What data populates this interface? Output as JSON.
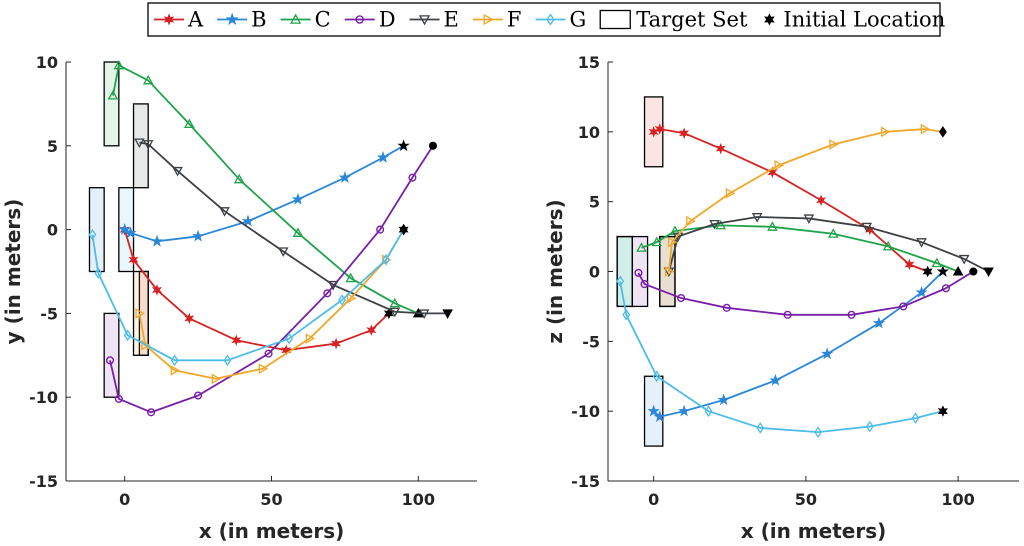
{
  "legend": {
    "placement": "top-center",
    "target_label": "Target Set",
    "initial_label": "Initial Location"
  },
  "chart_data": [
    {
      "type": "line",
      "xlabel": "x (in meters)",
      "ylabel": "y (in meters)",
      "xlim": [
        -20,
        120
      ],
      "ylim": [
        -15,
        10
      ],
      "xticks": [
        0,
        50,
        100
      ],
      "yticks": [
        -15,
        -10,
        -5,
        0,
        5,
        10
      ],
      "targets": [
        {
          "series": "A",
          "x": [
            5,
            8
          ],
          "y": [
            -7.5,
            -2.5
          ]
        },
        {
          "series": "B",
          "x": [
            -12,
            -7
          ],
          "y": [
            -2.5,
            2.5
          ]
        },
        {
          "series": "C",
          "x": [
            -7,
            -2
          ],
          "y": [
            5,
            10
          ]
        },
        {
          "series": "D",
          "x": [
            -7,
            -2
          ],
          "y": [
            -10,
            -5
          ]
        },
        {
          "series": "E",
          "x": [
            3,
            8
          ],
          "y": [
            2.5,
            7.5
          ]
        },
        {
          "series": "F",
          "x": [
            3,
            8
          ],
          "y": [
            -7.5,
            -2.5
          ]
        },
        {
          "series": "G",
          "x": [
            -2,
            3
          ],
          "y": [
            -2.5,
            2.5
          ]
        }
      ],
      "series": [
        {
          "name": "A",
          "color": "#d62222",
          "marker": "star6",
          "initial_marker": "hexagram",
          "x": [
            90,
            84,
            72,
            55,
            38,
            22,
            11,
            3,
            0
          ],
          "y": [
            -5,
            -6,
            -6.8,
            -7.2,
            -6.6,
            -5.3,
            -3.6,
            -1.8,
            0
          ]
        },
        {
          "name": "B",
          "color": "#2b87d8",
          "marker": "star5",
          "initial_marker": "star5",
          "x": [
            95,
            88,
            75,
            59,
            42,
            25,
            11,
            2,
            0
          ],
          "y": [
            5,
            4.3,
            3.1,
            1.8,
            0.5,
            -0.4,
            -0.7,
            -0.2,
            0
          ]
        },
        {
          "name": "C",
          "color": "#1fa34a",
          "marker": "triangle-up",
          "initial_marker": "triangle-up",
          "x": [
            100,
            92,
            77,
            59,
            39,
            22,
            8,
            -2,
            -4
          ],
          "y": [
            -5,
            -4.4,
            -2.9,
            -0.2,
            3,
            6.3,
            8.9,
            9.8,
            8
          ]
        },
        {
          "name": "D",
          "color": "#7a1fa8",
          "marker": "circle",
          "initial_marker": "circle",
          "x": [
            105,
            98,
            87,
            69,
            49,
            25,
            9,
            -2,
            -5
          ],
          "y": [
            5,
            3.1,
            0,
            -3.8,
            -7.4,
            -9.9,
            -10.9,
            -10.1,
            -7.8
          ]
        },
        {
          "name": "E",
          "color": "#3d4045",
          "marker": "triangle-down",
          "initial_marker": "triangle-down",
          "x": [
            110,
            102,
            92,
            71,
            54,
            34,
            18,
            8,
            5
          ],
          "y": [
            -5,
            -5,
            -4.9,
            -3.3,
            -1.3,
            1.1,
            3.5,
            5.1,
            5.2
          ]
        },
        {
          "name": "F",
          "color": "#f0a82a",
          "marker": "triangle-right",
          "initial_marker": "diamond",
          "x": [
            95,
            89,
            77,
            63,
            47,
            31,
            17,
            7,
            5
          ],
          "y": [
            0,
            -1.8,
            -4.1,
            -6.5,
            -8.3,
            -8.9,
            -8.4,
            -6.9,
            -5
          ]
        },
        {
          "name": "G",
          "color": "#4cbde8",
          "marker": "diamond",
          "initial_marker": "hexagram",
          "x": [
            95,
            89,
            74,
            56,
            35,
            17,
            1,
            -9,
            -11
          ],
          "y": [
            0,
            -1.8,
            -4.2,
            -6.5,
            -7.8,
            -7.8,
            -6.3,
            -2.6,
            -0.3
          ]
        }
      ]
    },
    {
      "type": "line",
      "xlabel": "x (in meters)",
      "ylabel": "z (in meters)",
      "xlim": [
        -15,
        120
      ],
      "ylim": [
        -15,
        15
      ],
      "xticks": [
        0,
        50,
        100
      ],
      "yticks": [
        -15,
        -10,
        -5,
        0,
        5,
        10,
        15
      ],
      "targets": [
        {
          "series": "A",
          "x": [
            -3,
            3
          ],
          "y": [
            7.5,
            12.5
          ]
        },
        {
          "series": "B",
          "x": [
            -3,
            3
          ],
          "y": [
            -12.5,
            -7.5
          ]
        },
        {
          "series": "C",
          "x": [
            -12,
            -7
          ],
          "y": [
            -2.5,
            2.5
          ]
        },
        {
          "series": "D",
          "x": [
            -7,
            -2
          ],
          "y": [
            -2.5,
            2.5
          ]
        },
        {
          "series": "E",
          "x": [
            2,
            7
          ],
          "y": [
            -2.5,
            2.5
          ]
        },
        {
          "series": "F",
          "x": [
            2,
            7
          ],
          "y": [
            -2.5,
            2.5
          ]
        },
        {
          "series": "G",
          "x": [
            -12,
            -7
          ],
          "y": [
            -2.5,
            2.5
          ]
        }
      ],
      "series": [
        {
          "name": "A",
          "color": "#d62222",
          "marker": "star6",
          "initial_marker": "hexagram",
          "x": [
            90,
            84,
            71,
            55,
            39,
            22,
            10,
            2,
            0
          ],
          "y": [
            0,
            0.5,
            3,
            5.1,
            7.1,
            8.8,
            9.9,
            10.2,
            10
          ]
        },
        {
          "name": "B",
          "color": "#2b87d8",
          "marker": "star5",
          "initial_marker": "star5",
          "x": [
            95,
            88,
            74,
            57,
            40,
            23,
            10,
            2,
            0
          ],
          "y": [
            0,
            -1.5,
            -3.7,
            -5.9,
            -7.8,
            -9.2,
            -10,
            -10.4,
            -10
          ]
        },
        {
          "name": "C",
          "color": "#1fa34a",
          "marker": "triangle-up",
          "initial_marker": "triangle-up",
          "x": [
            100,
            93,
            77,
            59,
            39,
            22,
            7,
            1,
            -4
          ],
          "y": [
            0,
            0.6,
            1.8,
            2.7,
            3.2,
            3.3,
            2.9,
            2.1,
            1.7
          ]
        },
        {
          "name": "D",
          "color": "#7a1fa8",
          "marker": "circle",
          "initial_marker": "circle",
          "x": [
            105,
            96,
            82,
            65,
            44,
            24,
            9,
            -3,
            -5
          ],
          "y": [
            0,
            -1.2,
            -2.5,
            -3.1,
            -3.1,
            -2.6,
            -1.9,
            -0.9,
            -0.1
          ]
        },
        {
          "name": "E",
          "color": "#3d4045",
          "marker": "triangle-down",
          "initial_marker": "triangle-down",
          "x": [
            110,
            102,
            88,
            70,
            51,
            34,
            20,
            8,
            5
          ],
          "y": [
            0,
            0.9,
            2.1,
            3.2,
            3.8,
            3.9,
            3.4,
            2.5,
            0
          ]
        },
        {
          "name": "F",
          "color": "#f0a82a",
          "marker": "triangle-right",
          "initial_marker": "diamond",
          "x": [
            95,
            89,
            76,
            59,
            41,
            25,
            12,
            6,
            5
          ],
          "y": [
            10,
            10.2,
            10,
            9.1,
            7.6,
            5.6,
            3.6,
            2.1,
            0
          ]
        },
        {
          "name": "G",
          "color": "#4cbde8",
          "marker": "diamond",
          "initial_marker": "hexagram",
          "x": [
            95,
            86,
            71,
            54,
            35,
            18,
            1,
            -9,
            -11
          ],
          "y": [
            -10,
            -10.5,
            -11.1,
            -11.5,
            -11.2,
            -10,
            -7.5,
            -3.1,
            -0.7
          ]
        }
      ]
    }
  ]
}
